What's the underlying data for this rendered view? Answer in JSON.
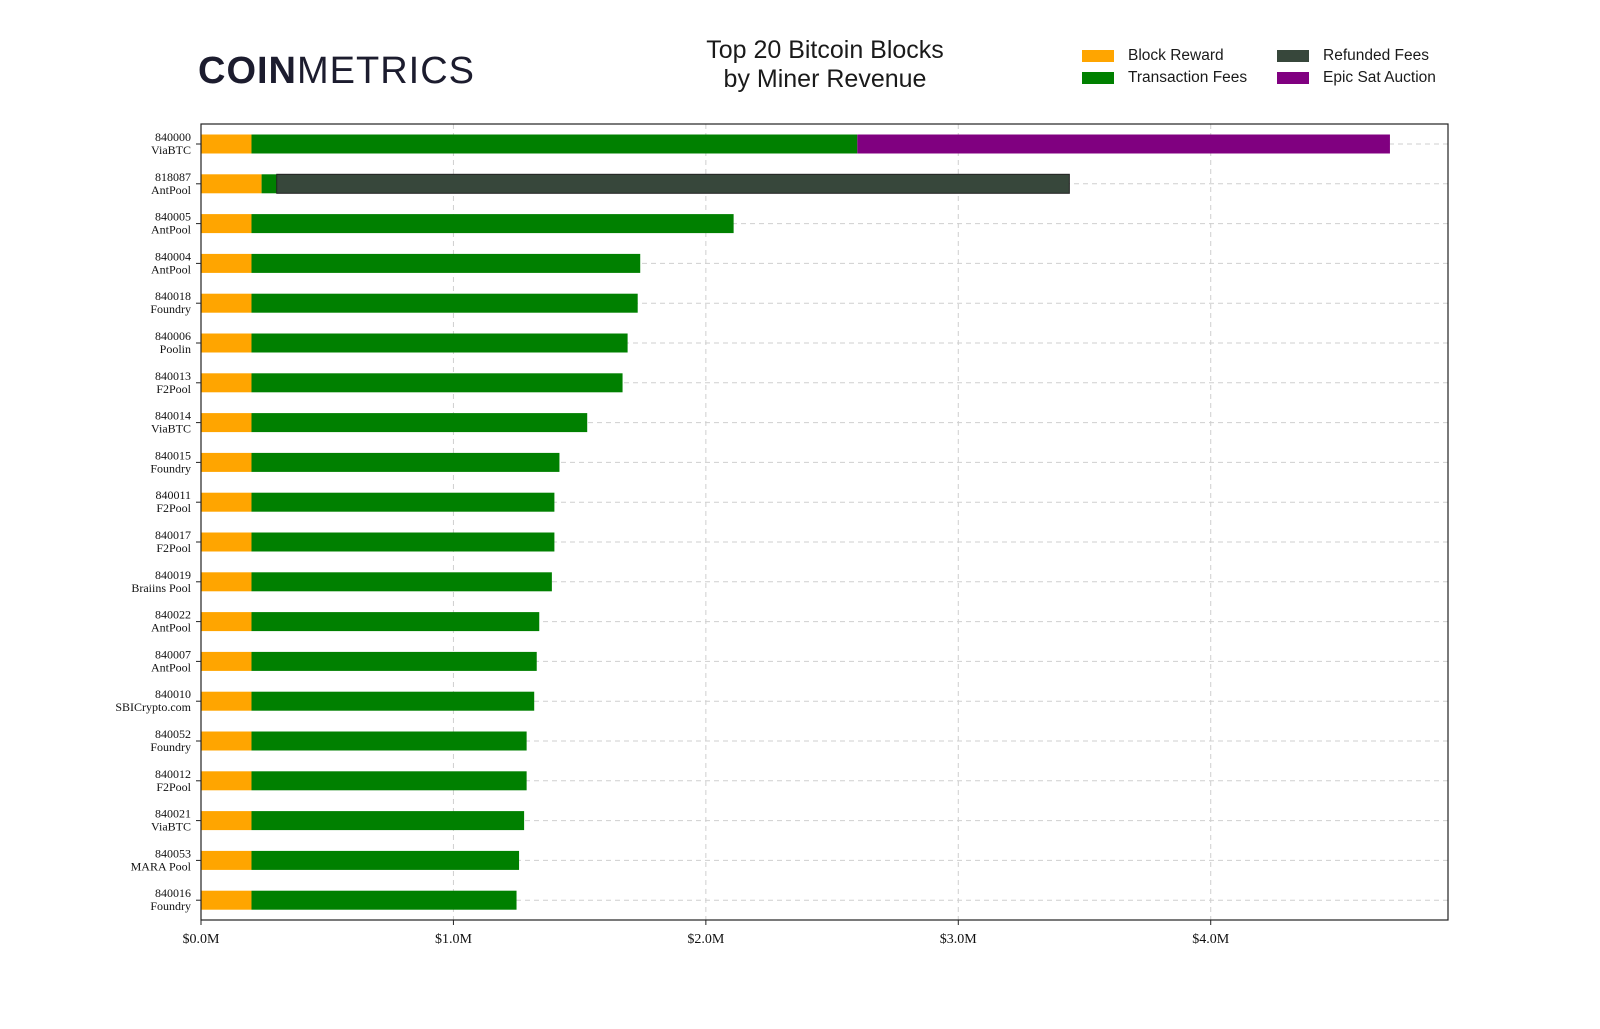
{
  "logo": {
    "bold": "COIN",
    "light": "METRICS"
  },
  "chart_data": {
    "type": "bar",
    "orientation": "horizontal",
    "stacked": true,
    "title": [
      "Top 20 Bitcoin Blocks",
      "by Miner Revenue"
    ],
    "xlabel": "",
    "ylabel": "",
    "xlim": [
      0,
      4.94
    ],
    "x_unit": "$M",
    "x_ticks": [
      {
        "value": 0,
        "label": "$0.0M"
      },
      {
        "value": 1,
        "label": "$1.0M"
      },
      {
        "value": 2,
        "label": "$2.0M"
      },
      {
        "value": 3,
        "label": "$3.0M"
      },
      {
        "value": 4,
        "label": "$4.0M"
      }
    ],
    "grid": true,
    "legend_position": "top-right",
    "categories": [
      {
        "block": "840000",
        "pool": "ViaBTC"
      },
      {
        "block": "818087",
        "pool": "AntPool"
      },
      {
        "block": "840005",
        "pool": "AntPool"
      },
      {
        "block": "840004",
        "pool": "AntPool"
      },
      {
        "block": "840018",
        "pool": "Foundry"
      },
      {
        "block": "840006",
        "pool": "Poolin"
      },
      {
        "block": "840013",
        "pool": "F2Pool"
      },
      {
        "block": "840014",
        "pool": "ViaBTC"
      },
      {
        "block": "840015",
        "pool": "Foundry"
      },
      {
        "block": "840011",
        "pool": "F2Pool"
      },
      {
        "block": "840017",
        "pool": "F2Pool"
      },
      {
        "block": "840019",
        "pool": "Braiins Pool"
      },
      {
        "block": "840022",
        "pool": "AntPool"
      },
      {
        "block": "840007",
        "pool": "AntPool"
      },
      {
        "block": "840010",
        "pool": "SBICrypto.com"
      },
      {
        "block": "840052",
        "pool": "Foundry"
      },
      {
        "block": "840012",
        "pool": "F2Pool"
      },
      {
        "block": "840021",
        "pool": "ViaBTC"
      },
      {
        "block": "840053",
        "pool": "MARA Pool"
      },
      {
        "block": "840016",
        "pool": "Foundry"
      }
    ],
    "series": [
      {
        "name": "Block Reward",
        "color": "#ffa500",
        "values": [
          0.2,
          0.24,
          0.2,
          0.2,
          0.2,
          0.2,
          0.2,
          0.2,
          0.2,
          0.2,
          0.2,
          0.2,
          0.2,
          0.2,
          0.2,
          0.2,
          0.2,
          0.2,
          0.2,
          0.2
        ]
      },
      {
        "name": "Transaction Fees",
        "color": "#008000",
        "values": [
          2.4,
          0.06,
          1.91,
          1.54,
          1.53,
          1.49,
          1.47,
          1.33,
          1.22,
          1.2,
          1.2,
          1.19,
          1.14,
          1.13,
          1.12,
          1.09,
          1.09,
          1.08,
          1.06,
          1.05
        ]
      },
      {
        "name": "Refunded Fees",
        "color": "#37473b",
        "values": [
          0,
          3.14,
          0,
          0,
          0,
          0,
          0,
          0,
          0,
          0,
          0,
          0,
          0,
          0,
          0,
          0,
          0,
          0,
          0,
          0
        ]
      },
      {
        "name": "Epic Sat Auction",
        "color": "#800080",
        "values": [
          2.11,
          0,
          0,
          0,
          0,
          0,
          0,
          0,
          0,
          0,
          0,
          0,
          0,
          0,
          0,
          0,
          0,
          0,
          0,
          0
        ]
      }
    ]
  }
}
